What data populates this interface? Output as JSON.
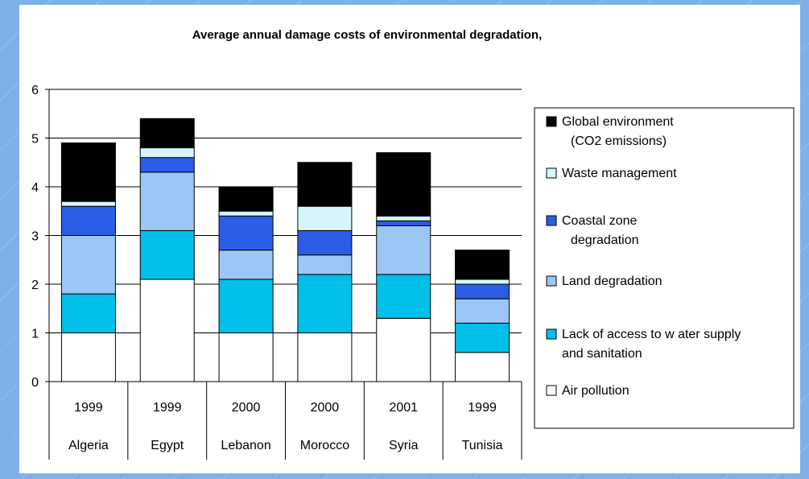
{
  "chart_data": {
    "type": "bar",
    "stacked": true,
    "title": "Average annual damage costs of environmental degradation,",
    "xlabel": "",
    "ylabel": "",
    "ylim": [
      0,
      6
    ],
    "yticks": [
      "0",
      "1",
      "2",
      "3",
      "4",
      "5",
      "6"
    ],
    "grid": true,
    "legend_position": "right",
    "categories": [
      {
        "country": "Algeria",
        "year": "1999"
      },
      {
        "country": "Egypt",
        "year": "1999"
      },
      {
        "country": "Lebanon",
        "year": "2000"
      },
      {
        "country": "Morocco",
        "year": "2000"
      },
      {
        "country": "Syria",
        "year": "2001"
      },
      {
        "country": "Tunisia",
        "year": "1999"
      }
    ],
    "series": [
      {
        "name": "Air pollution",
        "color": "#ffffff",
        "values": [
          1.0,
          2.1,
          1.0,
          1.0,
          1.3,
          0.6
        ]
      },
      {
        "name": "Lack of access to w ater supply and sanitation",
        "legend_lines": [
          "Lack of access to w ater supply",
          "and sanitation"
        ],
        "color": "#00c0ea",
        "values": [
          0.8,
          1.0,
          1.1,
          1.2,
          0.9,
          0.6
        ]
      },
      {
        "name": "Land degradation",
        "color": "#9cc6f6",
        "values": [
          1.2,
          1.2,
          0.6,
          0.4,
          1.0,
          0.5
        ]
      },
      {
        "name": "Coastal zone degradation",
        "legend_lines": [
          "Coastal zone",
          "degradation"
        ],
        "color": "#2a5de6",
        "values": [
          0.6,
          0.3,
          0.7,
          0.5,
          0.1,
          0.3
        ]
      },
      {
        "name": "Waste management",
        "color": "#d6f6fb",
        "values": [
          0.1,
          0.2,
          0.1,
          0.5,
          0.1,
          0.1
        ]
      },
      {
        "name": "Global environment (CO2 emissions)",
        "legend_lines": [
          "Global environment",
          "(CO2 emissions)"
        ],
        "color": "#000000",
        "values": [
          1.2,
          0.6,
          0.5,
          0.9,
          1.3,
          0.6
        ]
      }
    ]
  }
}
